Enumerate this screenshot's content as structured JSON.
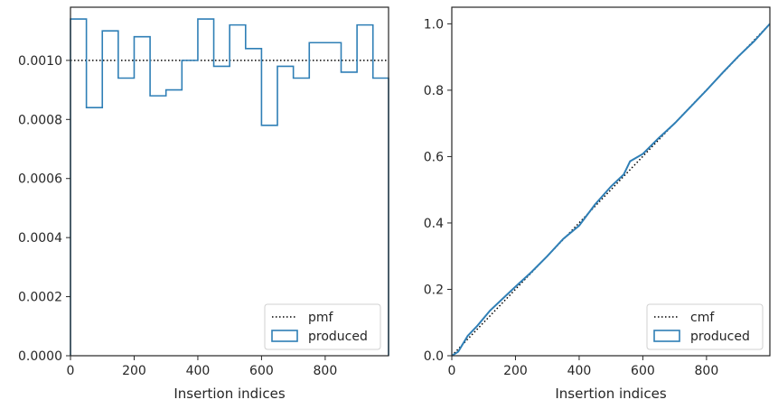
{
  "chart_data": [
    {
      "type": "histogram-step",
      "xlabel": "Insertion indices",
      "ylabel": "",
      "xlim": [
        0,
        999
      ],
      "ylim": [
        0,
        0.00118
      ],
      "xticks": [
        0,
        200,
        400,
        600,
        800
      ],
      "xtick_labels": [
        "0",
        "200",
        "400",
        "600",
        "800"
      ],
      "yticks": [
        0,
        0.0002,
        0.0004,
        0.0006,
        0.0008,
        0.001
      ],
      "ytick_labels": [
        "0.0000",
        "0.0002",
        "0.0004",
        "0.0006",
        "0.0008",
        "0.0010"
      ],
      "legend_position": "lower-right",
      "reference": {
        "name": "pmf",
        "style": "dotted",
        "value": 0.001
      },
      "series": [
        {
          "name": "produced",
          "bin_edges": [
            0,
            50,
            100,
            150,
            200,
            250,
            300,
            350,
            400,
            450,
            500,
            550,
            600,
            650,
            700,
            750,
            800,
            850,
            900,
            950,
            999
          ],
          "values": [
            0.00114,
            0.00084,
            0.0011,
            0.00094,
            0.00108,
            0.00088,
            0.0009,
            0.001,
            0.00114,
            0.00098,
            0.00112,
            0.00104,
            0.00078,
            0.00098,
            0.00094,
            0.00106,
            0.00106,
            0.00096,
            0.00112,
            0.00094
          ]
        }
      ]
    },
    {
      "type": "line",
      "xlabel": "Insertion indices",
      "ylabel": "",
      "xlim": [
        0,
        999
      ],
      "ylim": [
        0,
        1.05
      ],
      "xticks": [
        0,
        200,
        400,
        600,
        800
      ],
      "xtick_labels": [
        "0",
        "200",
        "400",
        "600",
        "800"
      ],
      "yticks": [
        0,
        0.2,
        0.4,
        0.6,
        0.8,
        1.0
      ],
      "ytick_labels": [
        "0.0",
        "0.2",
        "0.4",
        "0.6",
        "0.8",
        "1.0"
      ],
      "legend_position": "lower-right",
      "reference": {
        "name": "cmf",
        "style": "dotted",
        "x": [
          0,
          999
        ],
        "y": [
          0,
          1.0
        ]
      },
      "series": [
        {
          "name": "produced",
          "x": [
            0,
            20,
            50,
            80,
            120,
            160,
            200,
            250,
            300,
            350,
            400,
            450,
            500,
            540,
            560,
            600,
            650,
            700,
            750,
            800,
            850,
            900,
            950,
            999
          ],
          "y": [
            0,
            0.012,
            0.06,
            0.09,
            0.136,
            0.172,
            0.208,
            0.252,
            0.3,
            0.352,
            0.392,
            0.456,
            0.51,
            0.546,
            0.586,
            0.608,
            0.656,
            0.7,
            0.75,
            0.8,
            0.852,
            0.902,
            0.948,
            1.0
          ]
        }
      ]
    }
  ],
  "colors": {
    "produced": "#2f7fb6",
    "reference": "#000000",
    "axes": "#262626"
  }
}
